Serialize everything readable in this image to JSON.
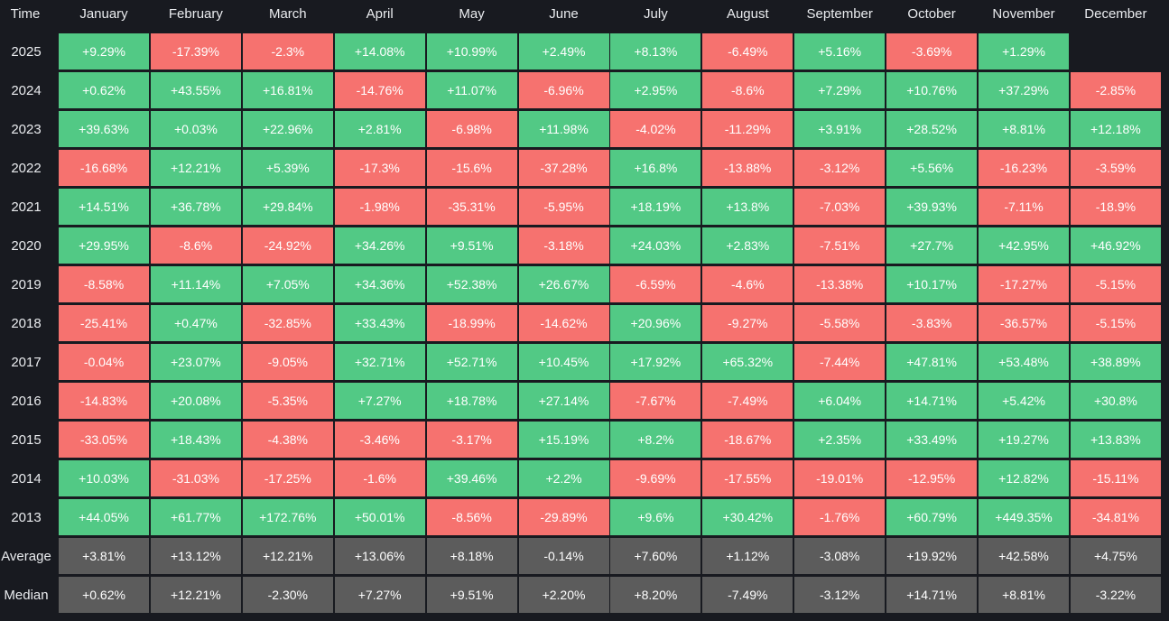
{
  "table": {
    "header": [
      "Time",
      "January",
      "February",
      "March",
      "April",
      "May",
      "June",
      "July",
      "August",
      "September",
      "October",
      "November",
      "December"
    ],
    "colors": {
      "positive": "#52c985",
      "negative": "#f6726f",
      "summary": "#5c5c5c"
    },
    "rows": [
      {
        "label": "2025",
        "cells": [
          "+9.29%",
          "-17.39%",
          "-2.3%",
          "+14.08%",
          "+10.99%",
          "+2.49%",
          "+8.13%",
          "-6.49%",
          "+5.16%",
          "-3.69%",
          "+1.29%"
        ]
      },
      {
        "label": "2024",
        "cells": [
          "+0.62%",
          "+43.55%",
          "+16.81%",
          "-14.76%",
          "+11.07%",
          "-6.96%",
          "+2.95%",
          "-8.6%",
          "+7.29%",
          "+10.76%",
          "+37.29%",
          "-2.85%"
        ]
      },
      {
        "label": "2023",
        "cells": [
          "+39.63%",
          "+0.03%",
          "+22.96%",
          "+2.81%",
          "-6.98%",
          "+11.98%",
          "-4.02%",
          "-11.29%",
          "+3.91%",
          "+28.52%",
          "+8.81%",
          "+12.18%"
        ]
      },
      {
        "label": "2022",
        "cells": [
          "-16.68%",
          "+12.21%",
          "+5.39%",
          "-17.3%",
          "-15.6%",
          "-37.28%",
          "+16.8%",
          "-13.88%",
          "-3.12%",
          "+5.56%",
          "-16.23%",
          "-3.59%"
        ]
      },
      {
        "label": "2021",
        "cells": [
          "+14.51%",
          "+36.78%",
          "+29.84%",
          "-1.98%",
          "-35.31%",
          "-5.95%",
          "+18.19%",
          "+13.8%",
          "-7.03%",
          "+39.93%",
          "-7.11%",
          "-18.9%"
        ]
      },
      {
        "label": "2020",
        "cells": [
          "+29.95%",
          "-8.6%",
          "-24.92%",
          "+34.26%",
          "+9.51%",
          "-3.18%",
          "+24.03%",
          "+2.83%",
          "-7.51%",
          "+27.7%",
          "+42.95%",
          "+46.92%"
        ]
      },
      {
        "label": "2019",
        "cells": [
          "-8.58%",
          "+11.14%",
          "+7.05%",
          "+34.36%",
          "+52.38%",
          "+26.67%",
          "-6.59%",
          "-4.6%",
          "-13.38%",
          "+10.17%",
          "-17.27%",
          "-5.15%"
        ]
      },
      {
        "label": "2018",
        "cells": [
          "-25.41%",
          "+0.47%",
          "-32.85%",
          "+33.43%",
          "-18.99%",
          "-14.62%",
          "+20.96%",
          "-9.27%",
          "-5.58%",
          "-3.83%",
          "-36.57%",
          "-5.15%"
        ]
      },
      {
        "label": "2017",
        "cells": [
          "-0.04%",
          "+23.07%",
          "-9.05%",
          "+32.71%",
          "+52.71%",
          "+10.45%",
          "+17.92%",
          "+65.32%",
          "-7.44%",
          "+47.81%",
          "+53.48%",
          "+38.89%"
        ]
      },
      {
        "label": "2016",
        "cells": [
          "-14.83%",
          "+20.08%",
          "-5.35%",
          "+7.27%",
          "+18.78%",
          "+27.14%",
          "-7.67%",
          "-7.49%",
          "+6.04%",
          "+14.71%",
          "+5.42%",
          "+30.8%"
        ]
      },
      {
        "label": "2015",
        "cells": [
          "-33.05%",
          "+18.43%",
          "-4.38%",
          "-3.46%",
          "-3.17%",
          "+15.19%",
          "+8.2%",
          "-18.67%",
          "+2.35%",
          "+33.49%",
          "+19.27%",
          "+13.83%"
        ]
      },
      {
        "label": "2014",
        "cells": [
          "+10.03%",
          "-31.03%",
          "-17.25%",
          "-1.6%",
          "+39.46%",
          "+2.2%",
          "-9.69%",
          "-17.55%",
          "-19.01%",
          "-12.95%",
          "+12.82%",
          "-15.11%"
        ]
      },
      {
        "label": "2013",
        "cells": [
          "+44.05%",
          "+61.77%",
          "+172.76%",
          "+50.01%",
          "-8.56%",
          "-29.89%",
          "+9.6%",
          "+30.42%",
          "-1.76%",
          "+60.79%",
          "+449.35%",
          "-34.81%"
        ]
      }
    ],
    "summary": [
      {
        "label": "Average",
        "cells": [
          "+3.81%",
          "+13.12%",
          "+12.21%",
          "+13.06%",
          "+8.18%",
          "-0.14%",
          "+7.60%",
          "+1.12%",
          "-3.08%",
          "+19.92%",
          "+42.58%",
          "+4.75%"
        ]
      },
      {
        "label": "Median",
        "cells": [
          "+0.62%",
          "+12.21%",
          "-2.30%",
          "+7.27%",
          "+9.51%",
          "+2.20%",
          "+8.20%",
          "-7.49%",
          "-3.12%",
          "+14.71%",
          "+8.81%",
          "-3.22%"
        ]
      }
    ]
  }
}
